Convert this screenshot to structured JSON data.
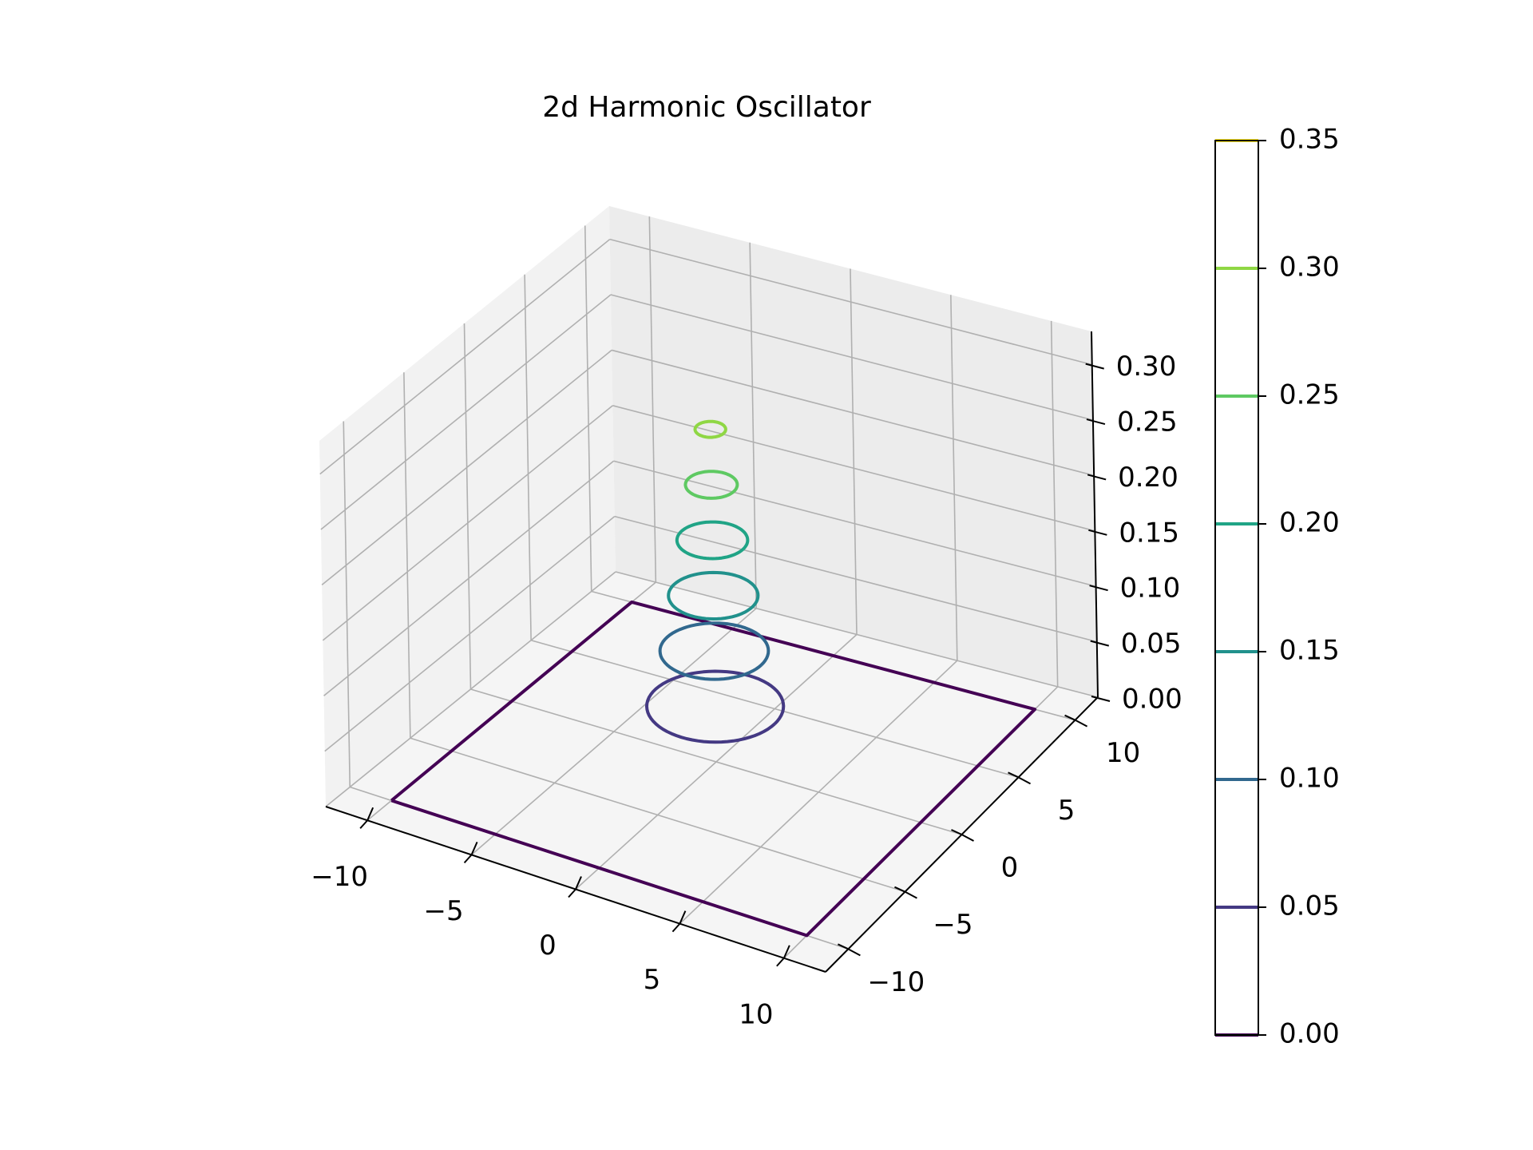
{
  "chart_data": {
    "type": "contour3d",
    "title": "2d Harmonic Oscillator",
    "xlabel": "",
    "ylabel": "",
    "zlabel": "",
    "xlim": [
      -12,
      12
    ],
    "ylim": [
      -12,
      12
    ],
    "zlim": [
      0,
      0.33
    ],
    "x_ticks": [
      -10,
      -5,
      0,
      5,
      10
    ],
    "y_ticks": [
      -10,
      -5,
      0,
      5,
      10
    ],
    "z_ticks": [
      0.0,
      0.05,
      0.1,
      0.15,
      0.2,
      0.25,
      0.3
    ],
    "x_tick_labels": [
      "−10",
      "−5",
      "0",
      "5",
      "10"
    ],
    "y_tick_labels": [
      "−10",
      "−5",
      "0",
      "5",
      "10"
    ],
    "z_tick_labels": [
      "0.00",
      "0.05",
      "0.10",
      "0.15",
      "0.20",
      "0.25",
      "0.30"
    ],
    "grid": true,
    "contours": [
      {
        "level": 0.0,
        "shape": "square",
        "half_width": 10,
        "color": "#440154"
      },
      {
        "level": 0.05,
        "shape": "circle",
        "radius": 2.9,
        "color": "#443983"
      },
      {
        "level": 0.1,
        "shape": "circle",
        "radius": 2.3,
        "color": "#31688e"
      },
      {
        "level": 0.15,
        "shape": "circle",
        "radius": 1.9,
        "color": "#21918c"
      },
      {
        "level": 0.2,
        "shape": "circle",
        "radius": 1.5,
        "color": "#20a486"
      },
      {
        "level": 0.25,
        "shape": "circle",
        "radius": 1.1,
        "color": "#5ec962"
      },
      {
        "level": 0.3,
        "shape": "circle",
        "radius": 0.65,
        "color": "#8fd744"
      }
    ],
    "colorbar": {
      "range": [
        0,
        0.35
      ],
      "ticks": [
        0.0,
        0.05,
        0.1,
        0.15,
        0.2,
        0.25,
        0.3,
        0.35
      ],
      "tick_labels": [
        "0.00",
        "0.05",
        "0.10",
        "0.15",
        "0.20",
        "0.25",
        "0.30",
        "0.35"
      ],
      "lines": [
        {
          "value": 0.0,
          "color": "#440154"
        },
        {
          "value": 0.05,
          "color": "#443983"
        },
        {
          "value": 0.1,
          "color": "#31688e"
        },
        {
          "value": 0.15,
          "color": "#21918c"
        },
        {
          "value": 0.2,
          "color": "#20a486"
        },
        {
          "value": 0.25,
          "color": "#5ec962"
        },
        {
          "value": 0.3,
          "color": "#8fd744"
        },
        {
          "value": 0.35,
          "color": "#fde725"
        }
      ]
    }
  }
}
